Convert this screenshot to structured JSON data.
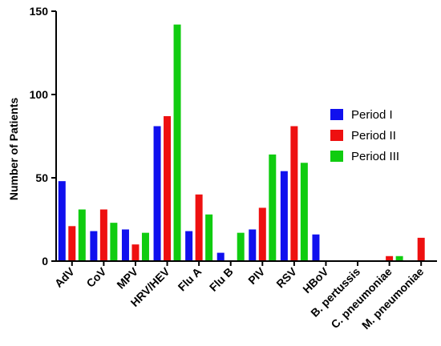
{
  "chart_data": {
    "type": "bar",
    "title": "",
    "xlabel": "",
    "ylabel": "Number of Patients",
    "ylim": [
      0,
      150
    ],
    "yticks": [
      0,
      50,
      100,
      150
    ],
    "grid": false,
    "legend_position": "right",
    "categories": [
      "AdV",
      "CoV",
      "MPV",
      "HRV/HEV",
      "Flu A",
      "Flu B",
      "PIV",
      "RSV",
      "HBoV",
      "B. pertussis",
      "C. pneumoniae",
      "M. pneumoniae"
    ],
    "series": [
      {
        "name": "Period I",
        "color": "#1010ee",
        "values": [
          48,
          18,
          19,
          81,
          18,
          5,
          19,
          54,
          16,
          0,
          0,
          0
        ]
      },
      {
        "name": "Period II",
        "color": "#ee1010",
        "values": [
          21,
          31,
          10,
          87,
          40,
          0,
          32,
          81,
          0,
          0,
          3,
          14
        ]
      },
      {
        "name": "Period III",
        "color": "#10cc10",
        "values": [
          31,
          23,
          17,
          142,
          28,
          17,
          64,
          59,
          0,
          0,
          3,
          0
        ]
      }
    ]
  }
}
